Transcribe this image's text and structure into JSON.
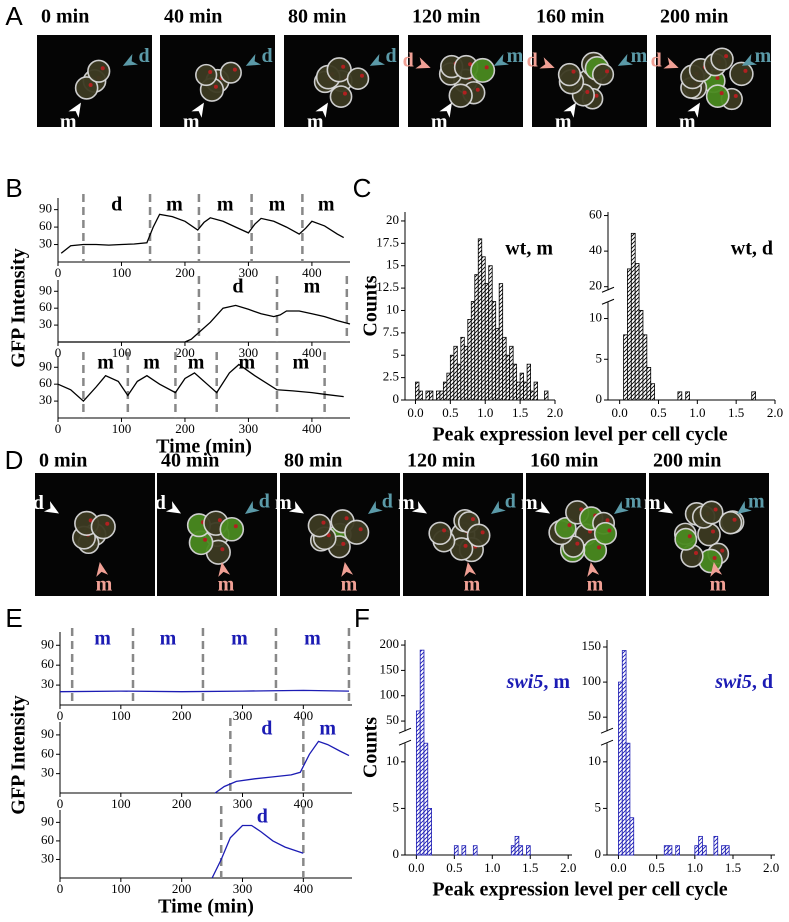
{
  "panel_labels": [
    "A",
    "B",
    "C",
    "D",
    "E",
    "F"
  ],
  "image_rows": [
    {
      "frames": [
        {
          "time": "0 min",
          "arrows": [
            {
              "text": "d",
              "color": "#5b9aa8"
            },
            {
              "text": "m",
              "color": "#ffffff"
            }
          ]
        },
        {
          "time": "40 min",
          "arrows": [
            {
              "text": "d",
              "color": "#5b9aa8"
            },
            {
              "text": "m",
              "color": "#ffffff"
            }
          ]
        },
        {
          "time": "80 min",
          "arrows": [
            {
              "text": "d",
              "color": "#5b9aa8"
            },
            {
              "text": "m",
              "color": "#ffffff"
            }
          ]
        },
        {
          "time": "120 min",
          "arrows": [
            {
              "text": "d",
              "color": "#f0a095"
            },
            {
              "text": "m",
              "color": "#5b9aa8"
            },
            {
              "text": "m",
              "color": "#ffffff"
            }
          ]
        },
        {
          "time": "160 min",
          "arrows": [
            {
              "text": "d",
              "color": "#f0a095"
            },
            {
              "text": "m",
              "color": "#5b9aa8"
            },
            {
              "text": "m",
              "color": "#ffffff"
            }
          ]
        },
        {
          "time": "200 min",
          "arrows": [
            {
              "text": "d",
              "color": "#f0a095"
            },
            {
              "text": "m",
              "color": "#5b9aa8"
            },
            {
              "text": "m",
              "color": "#ffffff"
            }
          ]
        }
      ]
    },
    {
      "frames": [
        {
          "time": "0 min",
          "arrows": [
            {
              "text": "d",
              "color": "#ffffff"
            },
            {
              "text": "m",
              "color": "#f0a095"
            }
          ]
        },
        {
          "time": "40 min",
          "arrows": [
            {
              "text": "d",
              "color": "#ffffff"
            },
            {
              "text": "d",
              "color": "#5b9aa8"
            },
            {
              "text": "m",
              "color": "#f0a095"
            }
          ]
        },
        {
          "time": "80 min",
          "arrows": [
            {
              "text": "m",
              "color": "#ffffff"
            },
            {
              "text": "d",
              "color": "#5b9aa8"
            },
            {
              "text": "m",
              "color": "#f0a095"
            }
          ]
        },
        {
          "time": "120 min",
          "arrows": [
            {
              "text": "m",
              "color": "#ffffff"
            },
            {
              "text": "d",
              "color": "#5b9aa8"
            },
            {
              "text": "m",
              "color": "#f0a095"
            }
          ]
        },
        {
          "time": "160 min",
          "arrows": [
            {
              "text": "m",
              "color": "#ffffff"
            },
            {
              "text": "m",
              "color": "#5b9aa8"
            },
            {
              "text": "m",
              "color": "#f0a095"
            }
          ]
        },
        {
          "time": "200 min",
          "arrows": [
            {
              "text": "m",
              "color": "#ffffff"
            },
            {
              "text": "m",
              "color": "#5b9aa8"
            },
            {
              "text": "m",
              "color": "#f0a095"
            }
          ]
        }
      ]
    }
  ],
  "trace_panels": [
    {
      "ylabel": "GFP Intensity",
      "xlabel": "Time (min)",
      "color": "#000000",
      "xlim": [
        0,
        460
      ],
      "xticks": [
        0,
        100,
        200,
        300,
        400
      ],
      "ylim": [
        0,
        110
      ],
      "yticks": [
        30,
        60,
        90
      ],
      "plots": [
        {
          "x": [
            5,
            20,
            40,
            60,
            80,
            100,
            120,
            140,
            150,
            160,
            180,
            200,
            220,
            230,
            240,
            260,
            280,
            300,
            310,
            320,
            340,
            360,
            380,
            390,
            400,
            420,
            440,
            450
          ],
          "y": [
            15,
            28,
            30,
            30,
            29,
            30,
            31,
            33,
            60,
            82,
            78,
            70,
            55,
            68,
            76,
            70,
            60,
            50,
            65,
            75,
            70,
            60,
            48,
            58,
            70,
            62,
            48,
            42
          ],
          "dividers": [
            40,
            145,
            222,
            305,
            385
          ],
          "segments": [
            "d",
            "m",
            "m",
            "m",
            "m"
          ]
        },
        {
          "x": [
            0,
            200,
            210,
            220,
            240,
            260,
            280,
            300,
            320,
            340,
            350,
            360,
            380,
            400,
            420,
            440,
            460
          ],
          "y": [
            0,
            0,
            5,
            15,
            35,
            60,
            65,
            58,
            50,
            45,
            48,
            55,
            55,
            50,
            45,
            38,
            32
          ],
          "dividers": [
            222,
            345,
            455
          ],
          "segments": [
            "d",
            "m"
          ]
        },
        {
          "x": [
            0,
            20,
            40,
            60,
            75,
            95,
            110,
            125,
            140,
            160,
            185,
            200,
            215,
            235,
            250,
            270,
            285,
            310,
            345,
            370,
            400,
            420,
            450
          ],
          "y": [
            60,
            50,
            30,
            55,
            75,
            65,
            40,
            65,
            75,
            60,
            45,
            70,
            80,
            60,
            45,
            80,
            95,
            75,
            50,
            48,
            45,
            42,
            38
          ],
          "dividers": [
            40,
            110,
            185,
            250,
            345,
            420
          ],
          "segments": [
            "m",
            "m",
            "m",
            "m",
            "m"
          ]
        }
      ]
    },
    {
      "ylabel": "GFP Intensity",
      "xlabel": "Time (min)",
      "color": "#1c1cb4",
      "xlim": [
        0,
        480
      ],
      "xticks": [
        0,
        100,
        200,
        300,
        400
      ],
      "ylim": [
        0,
        110
      ],
      "yticks": [
        30,
        60,
        90
      ],
      "plots": [
        {
          "x": [
            0,
            100,
            200,
            300,
            400,
            475
          ],
          "y": [
            20,
            21,
            20,
            21,
            22,
            21
          ],
          "dividers": [
            20,
            120,
            235,
            355,
            475
          ],
          "segments": [
            "m",
            "m",
            "m",
            "m"
          ]
        },
        {
          "x": [
            255,
            270,
            290,
            320,
            350,
            380,
            395,
            410,
            425,
            440,
            460,
            475
          ],
          "y": [
            0,
            10,
            18,
            22,
            25,
            28,
            32,
            60,
            80,
            75,
            65,
            58
          ],
          "dividers": [
            280,
            400
          ],
          "segments": [
            "d",
            "m"
          ]
        },
        {
          "x": [
            250,
            265,
            280,
            300,
            315,
            330,
            350,
            370,
            400
          ],
          "y": [
            0,
            30,
            65,
            85,
            85,
            75,
            60,
            50,
            40
          ],
          "dividers": [
            265,
            400
          ],
          "segments": [
            "d"
          ]
        }
      ]
    }
  ],
  "hist_panels": [
    {
      "xlabel": "Peak expression level per cell cycle",
      "ylabel": "Counts",
      "color": "#000000",
      "hists": [
        {
          "label_parts": [
            {
              "text": "wt, m"
            }
          ],
          "xlim": [
            -0.15,
            2.0
          ],
          "xticks": [
            {
              "value": 0,
              "label": "0.0"
            },
            0.5,
            {
              "value": 1,
              "label": "1.0"
            },
            1.5,
            {
              "value": 2,
              "label": "2.0"
            }
          ],
          "ylim": [
            0,
            21
          ],
          "yticks": [
            0,
            2.5,
            5,
            7.5,
            10,
            12.5,
            15,
            17.5,
            20
          ],
          "bins": [
            0,
            0.05,
            0.1,
            0.15,
            0.2,
            0.25,
            0.3,
            0.35,
            0.4,
            0.45,
            0.5,
            0.55,
            0.6,
            0.65,
            0.7,
            0.75,
            0.8,
            0.85,
            0.9,
            0.95,
            1,
            1.05,
            1.1,
            1.15,
            1.2,
            1.25,
            1.3,
            1.35,
            1.4,
            1.45,
            1.5,
            1.55,
            1.6,
            1.65,
            1.7,
            1.75,
            1.8,
            1.85,
            1.9
          ],
          "counts": [
            2,
            1,
            0,
            1,
            1,
            0,
            1,
            1,
            2,
            3,
            5,
            6,
            4,
            7,
            6,
            9,
            11,
            14,
            18,
            16,
            13,
            15,
            11,
            8,
            13,
            7,
            5,
            6,
            4,
            2,
            3,
            2,
            4,
            1,
            2,
            0,
            0,
            1
          ]
        },
        {
          "label_parts": [
            {
              "text": "wt, d"
            }
          ],
          "xlim": [
            -0.15,
            2.0
          ],
          "xticks": [
            {
              "value": 0,
              "label": "0.0"
            },
            0.5,
            {
              "value": 1,
              "label": "1.0"
            },
            1.5,
            {
              "value": 2,
              "label": "2.0"
            }
          ],
          "ylim": [
            0,
            12
          ],
          "yticks": [
            0,
            5,
            10
          ],
          "upper_ylim": [
            18,
            62
          ],
          "upper_yticks": [
            20,
            40,
            60
          ],
          "bins": [
            0,
            0.05,
            0.1,
            0.15,
            0.2,
            0.25,
            0.3,
            0.35,
            0.4,
            0.45,
            0.5,
            0.55,
            0.6,
            0.65,
            0.7,
            0.75,
            0.8,
            0.85,
            0.9,
            0.95,
            1,
            1.05,
            1.1,
            1.15,
            1.2,
            1.25,
            1.3,
            1.35,
            1.4,
            1.45,
            1.5,
            1.55,
            1.6,
            1.65,
            1.7,
            1.75,
            1.8
          ],
          "counts": [
            0,
            8,
            30,
            50,
            33,
            11,
            8,
            4,
            2,
            0,
            0,
            0,
            0,
            0,
            0,
            1,
            0,
            1,
            0,
            0,
            0,
            0,
            0,
            0,
            0,
            0,
            0,
            0,
            0,
            0,
            0,
            0,
            0,
            0,
            1,
            0
          ]
        }
      ]
    },
    {
      "xlabel": "Peak expression level per cell cycle",
      "ylabel": "Counts",
      "color": "#1c1cb4",
      "hists": [
        {
          "label_parts": [
            {
              "text": "swi5",
              "italic": true
            },
            {
              "text": ", m"
            }
          ],
          "xlim": [
            -0.15,
            2.05
          ],
          "xticks": [
            {
              "value": 0,
              "label": "0.0"
            },
            0.5,
            {
              "value": 1,
              "label": "1.0"
            },
            1.5,
            {
              "value": 2,
              "label": "2.0"
            }
          ],
          "ylim": [
            0,
            12
          ],
          "yticks": [
            0,
            5,
            10
          ],
          "upper_ylim": [
            30,
            210
          ],
          "upper_yticks": [
            50,
            100,
            150,
            200
          ],
          "bins": [
            0,
            0.05,
            0.1,
            0.15,
            0.2,
            0.25,
            0.3,
            0.35,
            0.4,
            0.45,
            0.5,
            0.55,
            0.6,
            0.65,
            0.7,
            0.75,
            0.8,
            0.85,
            0.9,
            0.95,
            1,
            1.05,
            1.1,
            1.15,
            1.2,
            1.25,
            1.3,
            1.35,
            1.4,
            1.45,
            1.5
          ],
          "counts": [
            70,
            190,
            12,
            5,
            0,
            0,
            0,
            0,
            0,
            0,
            1,
            0,
            1,
            0,
            0,
            1,
            0,
            0,
            0,
            0,
            0,
            0,
            0,
            0,
            0,
            1,
            2,
            1,
            0,
            1
          ]
        },
        {
          "label_parts": [
            {
              "text": "swi5",
              "italic": true
            },
            {
              "text": ", d"
            }
          ],
          "xlim": [
            -0.15,
            2.05
          ],
          "xticks": [
            {
              "value": 0,
              "label": "0.0"
            },
            0.5,
            {
              "value": 1,
              "label": "1.0"
            },
            1.5,
            {
              "value": 2,
              "label": "2.0"
            }
          ],
          "ylim": [
            0,
            12
          ],
          "yticks": [
            0,
            5,
            10
          ],
          "upper_ylim": [
            30,
            160
          ],
          "upper_yticks": [
            50,
            100,
            150
          ],
          "bins": [
            0,
            0.05,
            0.1,
            0.15,
            0.2,
            0.25,
            0.3,
            0.35,
            0.4,
            0.45,
            0.5,
            0.55,
            0.6,
            0.65,
            0.7,
            0.75,
            0.8,
            0.85,
            0.9,
            0.95,
            1,
            1.05,
            1.1,
            1.15,
            1.2,
            1.25,
            1.3,
            1.35,
            1.4,
            1.45,
            1.5
          ],
          "counts": [
            100,
            145,
            12,
            4,
            0,
            0,
            0,
            0,
            0,
            0,
            0,
            0,
            1,
            1,
            0,
            1,
            0,
            0,
            0,
            0,
            1,
            2,
            1,
            0,
            0,
            2,
            0,
            1,
            1,
            0
          ]
        }
      ]
    }
  ]
}
